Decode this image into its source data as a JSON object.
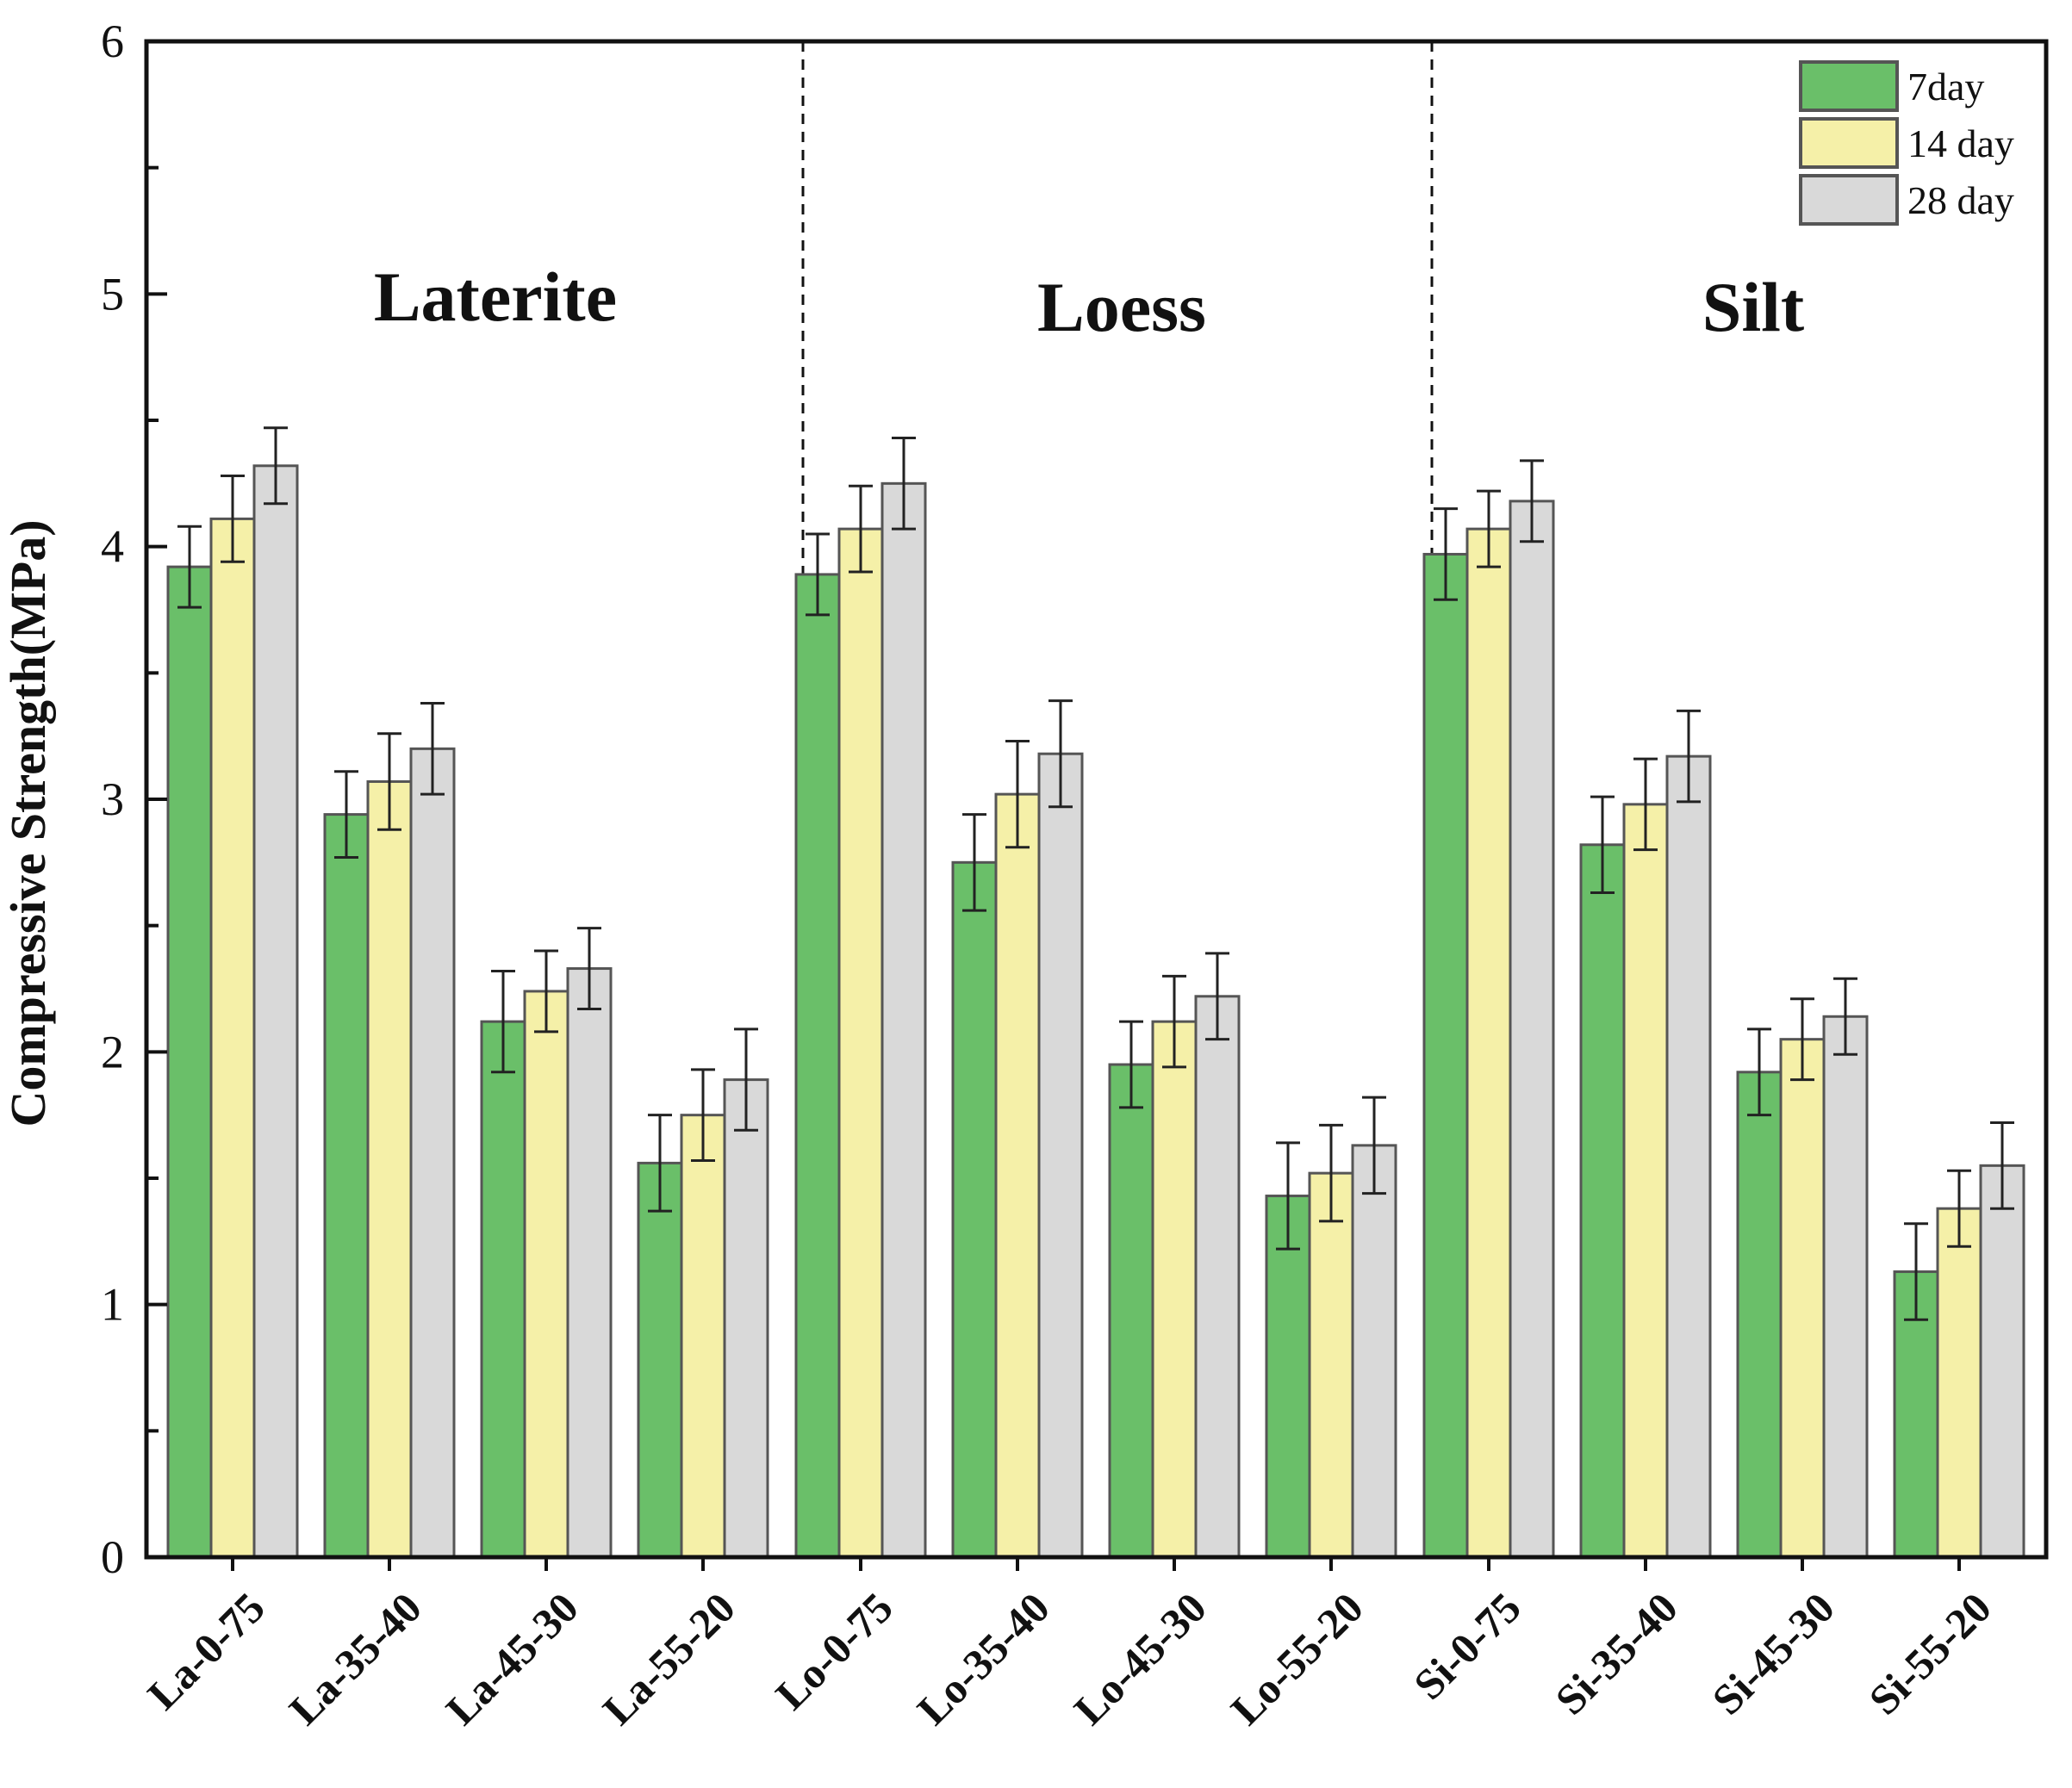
{
  "chart_data": {
    "type": "bar",
    "title": "",
    "xlabel": "",
    "ylabel": "Compressive Strength(MPa)",
    "ylim": [
      0,
      6
    ],
    "yticks": [
      "0",
      "1",
      "2",
      "3",
      "4",
      "5",
      "6"
    ],
    "categories": [
      "La-0-75",
      "La-35-40",
      "La-45-30",
      "La-55-20",
      "Lo-0-75",
      "Lo-35-40",
      "Lo-45-30",
      "Lo-55-20",
      "Si-0-75",
      "Si-35-40",
      "Si-45-30",
      "Si-55-20"
    ],
    "groups": [
      {
        "label": "Laterite",
        "start": 0,
        "end": 3
      },
      {
        "label": "Loess",
        "start": 4,
        "end": 7
      },
      {
        "label": "Silt",
        "start": 8,
        "end": 11
      }
    ],
    "series": [
      {
        "name": "7day",
        "color": "#6abf69",
        "values": [
          3.92,
          2.94,
          2.12,
          1.56,
          3.89,
          2.75,
          1.95,
          1.43,
          3.97,
          2.82,
          1.92,
          1.13
        ],
        "errors": [
          0.16,
          0.17,
          0.2,
          0.19,
          0.16,
          0.19,
          0.17,
          0.21,
          0.18,
          0.19,
          0.17,
          0.19
        ]
      },
      {
        "name": "14 day",
        "color": "#f5f0a8",
        "values": [
          4.11,
          3.07,
          2.24,
          1.75,
          4.07,
          3.02,
          2.12,
          1.52,
          4.07,
          2.98,
          2.05,
          1.38
        ],
        "errors": [
          0.17,
          0.19,
          0.16,
          0.18,
          0.17,
          0.21,
          0.18,
          0.19,
          0.15,
          0.18,
          0.16,
          0.15
        ]
      },
      {
        "name": "28 day",
        "color": "#d9d9d9",
        "values": [
          4.32,
          3.2,
          2.33,
          1.89,
          4.25,
          3.18,
          2.22,
          1.63,
          4.18,
          3.17,
          2.14,
          1.55
        ],
        "errors": [
          0.15,
          0.18,
          0.16,
          0.2,
          0.18,
          0.21,
          0.17,
          0.19,
          0.16,
          0.18,
          0.15,
          0.17
        ]
      }
    ],
    "legend_position": "top-right"
  }
}
